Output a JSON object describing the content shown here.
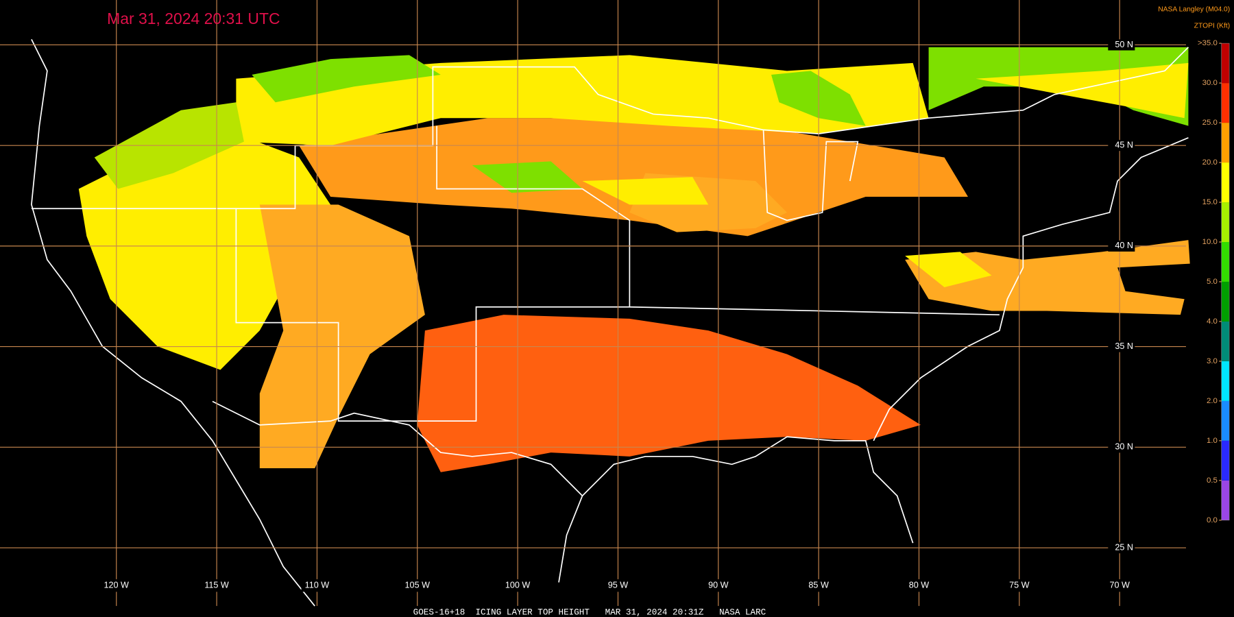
{
  "map": {
    "title": "Mar 31, 2024 20:31 UTC",
    "credit": "NASA Langley (M04.0)",
    "caption": "GOES-16+18  ICING LAYER TOP HEIGHT   MAR 31, 2024 20:31Z   NASA LARC",
    "xlim": [
      -125.8,
      -64.3
    ],
    "ylim": [
      21.56,
      52.23
    ],
    "xticks": [
      {
        "value": -120,
        "label": "120 W"
      },
      {
        "value": -115,
        "label": "115 W"
      },
      {
        "value": -110,
        "label": "110 W"
      },
      {
        "value": -105,
        "label": "105 W"
      },
      {
        "value": -100,
        "label": "100 W"
      },
      {
        "value": -95,
        "label": "95 W"
      },
      {
        "value": -90,
        "label": "90 W"
      },
      {
        "value": -85,
        "label": "85 W"
      },
      {
        "value": -80,
        "label": "80 W"
      },
      {
        "value": -75,
        "label": "75 W"
      },
      {
        "value": -70,
        "label": "70 W"
      }
    ],
    "yticks": [
      {
        "value": 50,
        "label": "50 N"
      },
      {
        "value": 45,
        "label": "45 N"
      },
      {
        "value": 40,
        "label": "40 N"
      },
      {
        "value": 35,
        "label": "35 N"
      },
      {
        "value": 30,
        "label": "30 N"
      },
      {
        "value": 25,
        "label": "25 N"
      }
    ],
    "grid_color": "#c8874f"
  },
  "colorbar": {
    "title": "ZTOPI (Kft)",
    "ticks": [
      {
        "value": 0,
        "label": "0.0"
      },
      {
        "value": 0.5,
        "label": "0.5"
      },
      {
        "value": 1,
        "label": "1.0"
      },
      {
        "value": 2,
        "label": "2.0"
      },
      {
        "value": 3,
        "label": "3.0"
      },
      {
        "value": 4,
        "label": "4.0"
      },
      {
        "value": 5,
        "label": "5.0"
      },
      {
        "value": 10,
        "label": "10.0"
      },
      {
        "value": 15,
        "label": "15.0"
      },
      {
        "value": 20,
        "label": "20.0"
      },
      {
        "value": 25,
        "label": "25.0"
      },
      {
        "value": 30,
        "label": "30.0"
      },
      {
        "value": 35,
        "label": ">35.0"
      }
    ],
    "colors": [
      "#9a46e6",
      "#2a2aff",
      "#1a8cff",
      "#00e6ff",
      "#008c78",
      "#00a000",
      "#33dd00",
      "#a8f000",
      "#ffff00",
      "#ffa000",
      "#ff3000",
      "#c00000"
    ]
  }
}
